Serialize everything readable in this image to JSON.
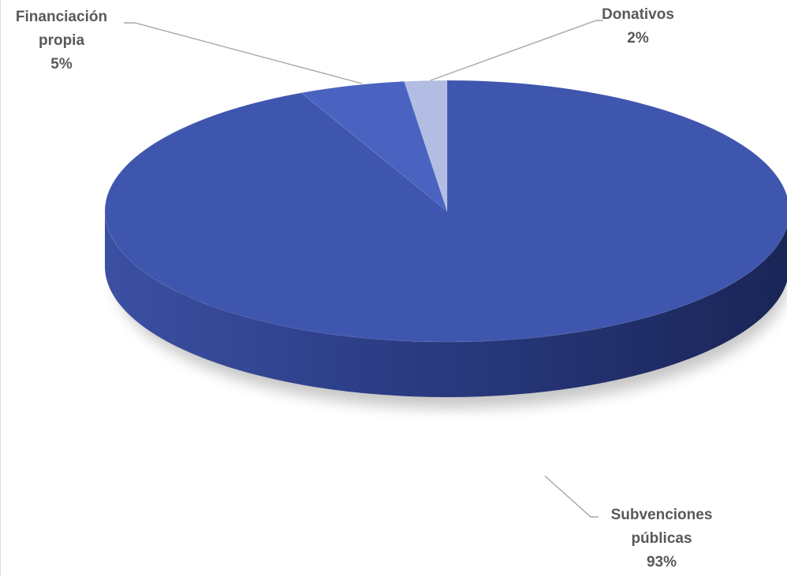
{
  "chart_data": {
    "type": "pie",
    "title": "",
    "start_angle_deg": 0,
    "direction": "clockwise",
    "style": "3d",
    "slices": [
      {
        "label_lines": [
          "Subvenciones",
          "públicas"
        ],
        "pct_label": "93%",
        "value": 93,
        "color": "#3F56AE"
      },
      {
        "label_lines": [
          "Financiación",
          "propia"
        ],
        "pct_label": "5%",
        "value": 5,
        "color": "#4A63C1"
      },
      {
        "label_lines": [
          "Donativos"
        ],
        "pct_label": "2%",
        "value": 2,
        "color": "#B3BCE2"
      }
    ],
    "legend": "none",
    "data_labels": "outside, category name and percentage"
  }
}
